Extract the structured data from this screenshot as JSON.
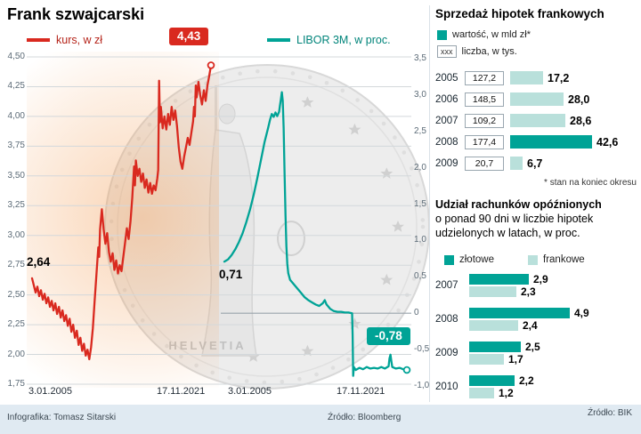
{
  "header": {
    "title": "Frank szwajcarski"
  },
  "coin": {
    "inscription": "HELVETIA"
  },
  "colors": {
    "red": "#d9291f",
    "teal": "#00a396",
    "teal_light": "#b9e0db",
    "grid": "#d3d8db",
    "zero_line": "#99a3ab"
  },
  "footer": {
    "credit": "Infografika: Tomasz Sitarski",
    "source_main": "Źródło: Bloomberg",
    "source_right": "Źródło: BIK"
  },
  "chart_data": [
    {
      "id": "kurs",
      "type": "line",
      "title": "kurs, w zł",
      "color": "#d9291f",
      "axis": "left",
      "ylim": [
        1.75,
        4.5
      ],
      "start_label": "2,64",
      "end_label": "4,43",
      "x_ticks": [
        "3.01.2005",
        "17.11.2021"
      ],
      "yticks": [
        {
          "v": 4.5,
          "label": "4,50"
        },
        {
          "v": 4.25,
          "label": "4,25"
        },
        {
          "v": 4.0,
          "label": "4,00"
        },
        {
          "v": 3.75,
          "label": "3,75"
        },
        {
          "v": 3.5,
          "label": "3,50"
        },
        {
          "v": 3.25,
          "label": "3,25"
        },
        {
          "v": 3.0,
          "label": "3,00"
        },
        {
          "v": 2.75,
          "label": "2,75"
        },
        {
          "v": 2.5,
          "label": "2,50"
        },
        {
          "v": 2.25,
          "label": "2,25"
        },
        {
          "v": 2.0,
          "label": "2,00"
        },
        {
          "v": 1.75,
          "label": "1,75"
        }
      ],
      "points": [
        [
          0,
          2.64
        ],
        [
          0.01,
          2.58
        ],
        [
          0.02,
          2.52
        ],
        [
          0.03,
          2.57
        ],
        [
          0.04,
          2.49
        ],
        [
          0.05,
          2.54
        ],
        [
          0.06,
          2.46
        ],
        [
          0.07,
          2.51
        ],
        [
          0.08,
          2.43
        ],
        [
          0.09,
          2.48
        ],
        [
          0.1,
          2.4
        ],
        [
          0.11,
          2.45
        ],
        [
          0.12,
          2.37
        ],
        [
          0.13,
          2.43
        ],
        [
          0.14,
          2.34
        ],
        [
          0.15,
          2.4
        ],
        [
          0.16,
          2.31
        ],
        [
          0.17,
          2.37
        ],
        [
          0.18,
          2.28
        ],
        [
          0.19,
          2.33
        ],
        [
          0.2,
          2.24
        ],
        [
          0.21,
          2.3
        ],
        [
          0.22,
          2.19
        ],
        [
          0.23,
          2.25
        ],
        [
          0.24,
          2.14
        ],
        [
          0.25,
          2.2
        ],
        [
          0.26,
          2.08
        ],
        [
          0.27,
          2.14
        ],
        [
          0.28,
          2.03
        ],
        [
          0.29,
          2.09
        ],
        [
          0.3,
          1.99
        ],
        [
          0.31,
          2.04
        ],
        [
          0.32,
          1.96
        ],
        [
          0.33,
          2.06
        ],
        [
          0.34,
          2.22
        ],
        [
          0.35,
          2.45
        ],
        [
          0.36,
          2.68
        ],
        [
          0.37,
          2.9
        ],
        [
          0.375,
          2.82
        ],
        [
          0.38,
          3.05
        ],
        [
          0.39,
          3.22
        ],
        [
          0.4,
          3.05
        ],
        [
          0.41,
          2.93
        ],
        [
          0.42,
          3.02
        ],
        [
          0.43,
          2.86
        ],
        [
          0.44,
          2.78
        ],
        [
          0.45,
          2.85
        ],
        [
          0.46,
          2.71
        ],
        [
          0.47,
          2.79
        ],
        [
          0.48,
          2.68
        ],
        [
          0.49,
          2.75
        ],
        [
          0.5,
          2.7
        ],
        [
          0.51,
          2.82
        ],
        [
          0.52,
          2.94
        ],
        [
          0.53,
          3.06
        ],
        [
          0.54,
          2.97
        ],
        [
          0.55,
          3.12
        ],
        [
          0.56,
          3.32
        ],
        [
          0.57,
          3.58
        ],
        [
          0.575,
          3.42
        ],
        [
          0.58,
          3.63
        ],
        [
          0.59,
          3.5
        ],
        [
          0.6,
          3.56
        ],
        [
          0.61,
          3.45
        ],
        [
          0.62,
          3.52
        ],
        [
          0.63,
          3.4
        ],
        [
          0.64,
          3.47
        ],
        [
          0.65,
          3.36
        ],
        [
          0.66,
          3.44
        ],
        [
          0.67,
          3.35
        ],
        [
          0.68,
          3.42
        ],
        [
          0.69,
          3.38
        ],
        [
          0.7,
          3.48
        ],
        [
          0.705,
          3.55
        ],
        [
          0.71,
          4.3
        ],
        [
          0.715,
          3.95
        ],
        [
          0.72,
          4.08
        ],
        [
          0.73,
          3.9
        ],
        [
          0.74,
          4.0
        ],
        [
          0.75,
          3.89
        ],
        [
          0.76,
          4.02
        ],
        [
          0.77,
          3.93
        ],
        [
          0.78,
          4.08
        ],
        [
          0.79,
          3.97
        ],
        [
          0.8,
          4.05
        ],
        [
          0.81,
          3.92
        ],
        [
          0.82,
          3.74
        ],
        [
          0.83,
          3.62
        ],
        [
          0.84,
          3.56
        ],
        [
          0.85,
          3.66
        ],
        [
          0.86,
          3.74
        ],
        [
          0.87,
          3.82
        ],
        [
          0.88,
          3.76
        ],
        [
          0.89,
          3.86
        ],
        [
          0.9,
          3.96
        ],
        [
          0.905,
          4.08
        ],
        [
          0.91,
          4.0
        ],
        [
          0.915,
          4.26
        ],
        [
          0.92,
          4.16
        ],
        [
          0.93,
          4.29
        ],
        [
          0.94,
          4.18
        ],
        [
          0.95,
          4.1
        ],
        [
          0.96,
          4.22
        ],
        [
          0.97,
          4.13
        ],
        [
          0.98,
          4.26
        ],
        [
          0.99,
          4.34
        ],
        [
          1,
          4.43
        ]
      ]
    },
    {
      "id": "libor",
      "type": "line",
      "title": "LIBOR 3M, w proc.",
      "color": "#00a396",
      "axis": "right",
      "ylim": [
        -1.0,
        3.5
      ],
      "start_label": "0,71",
      "end_label": "-0,78",
      "x_ticks": [
        "3.01.2005",
        "17.11.2021"
      ],
      "yticks": [
        {
          "v": 3.5,
          "label": "3,5"
        },
        {
          "v": 3.0,
          "label": "3,0"
        },
        {
          "v": 2.5,
          "label": "2,5"
        },
        {
          "v": 2.0,
          "label": "2,0"
        },
        {
          "v": 1.5,
          "label": "1,5"
        },
        {
          "v": 1.0,
          "label": "1,0"
        },
        {
          "v": 0.5,
          "label": "0,5"
        },
        {
          "v": 0,
          "label": "0"
        },
        {
          "v": -0.5,
          "label": "-0,5"
        },
        {
          "v": -1.0,
          "label": "-1,0"
        }
      ],
      "points": [
        [
          0,
          0.71
        ],
        [
          0.02,
          0.74
        ],
        [
          0.04,
          0.8
        ],
        [
          0.06,
          0.88
        ],
        [
          0.08,
          0.98
        ],
        [
          0.1,
          1.1
        ],
        [
          0.12,
          1.25
        ],
        [
          0.14,
          1.42
        ],
        [
          0.16,
          1.62
        ],
        [
          0.18,
          1.85
        ],
        [
          0.2,
          2.1
        ],
        [
          0.22,
          2.35
        ],
        [
          0.24,
          2.55
        ],
        [
          0.25,
          2.66
        ],
        [
          0.26,
          2.74
        ],
        [
          0.27,
          2.7
        ],
        [
          0.28,
          2.76
        ],
        [
          0.29,
          2.71
        ],
        [
          0.3,
          2.77
        ],
        [
          0.305,
          2.86
        ],
        [
          0.31,
          2.95
        ],
        [
          0.315,
          3.04
        ],
        [
          0.32,
          2.92
        ],
        [
          0.325,
          2.55
        ],
        [
          0.33,
          1.95
        ],
        [
          0.335,
          1.35
        ],
        [
          0.34,
          0.92
        ],
        [
          0.345,
          0.68
        ],
        [
          0.35,
          0.55
        ],
        [
          0.36,
          0.46
        ],
        [
          0.38,
          0.4
        ],
        [
          0.4,
          0.34
        ],
        [
          0.42,
          0.28
        ],
        [
          0.44,
          0.22
        ],
        [
          0.46,
          0.18
        ],
        [
          0.48,
          0.15
        ],
        [
          0.5,
          0.12
        ],
        [
          0.52,
          0.1
        ],
        [
          0.54,
          0.14
        ],
        [
          0.55,
          0.18
        ],
        [
          0.56,
          0.12
        ],
        [
          0.58,
          0.06
        ],
        [
          0.6,
          0.03
        ],
        [
          0.62,
          0.02
        ],
        [
          0.64,
          0.02
        ],
        [
          0.66,
          0.01
        ],
        [
          0.68,
          0.01
        ],
        [
          0.7,
          0.0
        ],
        [
          0.703,
          -0.3
        ],
        [
          0.706,
          -0.86
        ],
        [
          0.71,
          -0.74
        ],
        [
          0.72,
          -0.78
        ],
        [
          0.74,
          -0.75
        ],
        [
          0.76,
          -0.77
        ],
        [
          0.78,
          -0.74
        ],
        [
          0.8,
          -0.76
        ],
        [
          0.82,
          -0.75
        ],
        [
          0.84,
          -0.76
        ],
        [
          0.86,
          -0.74
        ],
        [
          0.88,
          -0.76
        ],
        [
          0.9,
          -0.73
        ],
        [
          0.905,
          -0.62
        ],
        [
          0.91,
          -0.57
        ],
        [
          0.915,
          -0.66
        ],
        [
          0.92,
          -0.74
        ],
        [
          0.94,
          -0.76
        ],
        [
          0.96,
          -0.75
        ],
        [
          0.98,
          -0.77
        ],
        [
          1,
          -0.78
        ]
      ]
    },
    {
      "id": "mortgage_sales",
      "type": "bar",
      "title": "Sprzedaż hipotek frankowych",
      "legend_box": "xxx",
      "note": "* stan na koniec okresu",
      "categories": [
        "2005",
        "2006",
        "2007",
        "2008",
        "2009"
      ],
      "highlight": [
        false,
        false,
        false,
        true,
        false
      ],
      "series": [
        {
          "name": "wartość, w mld zł*",
          "values": [
            17.2,
            28.0,
            28.6,
            42.6,
            6.7
          ],
          "labels": [
            "17,2",
            "28,0",
            "28,6",
            "42,6",
            "6,7"
          ]
        },
        {
          "name": "liczba, w tys.",
          "values": [
            127.2,
            148.5,
            109.2,
            177.4,
            20.7
          ],
          "labels": [
            "127,2",
            "148,5",
            "109,2",
            "177,4",
            "20,7"
          ]
        }
      ]
    },
    {
      "id": "delinquency",
      "type": "bar",
      "title_lines": [
        "Udział rachunków opóźnionych",
        "o ponad 90 dni w liczbie hipotek",
        "udzielonych w latach, w proc."
      ],
      "categories": [
        "2007",
        "2008",
        "2009",
        "2010"
      ],
      "series": [
        {
          "name": "złotowe",
          "values": [
            2.9,
            4.9,
            2.5,
            2.2
          ],
          "labels": [
            "2,9",
            "4,9",
            "2,5",
            "2,2"
          ]
        },
        {
          "name": "frankowe",
          "values": [
            2.3,
            2.4,
            1.7,
            1.2
          ],
          "labels": [
            "2,3",
            "2,4",
            "1,7",
            "1,2"
          ]
        }
      ]
    }
  ]
}
